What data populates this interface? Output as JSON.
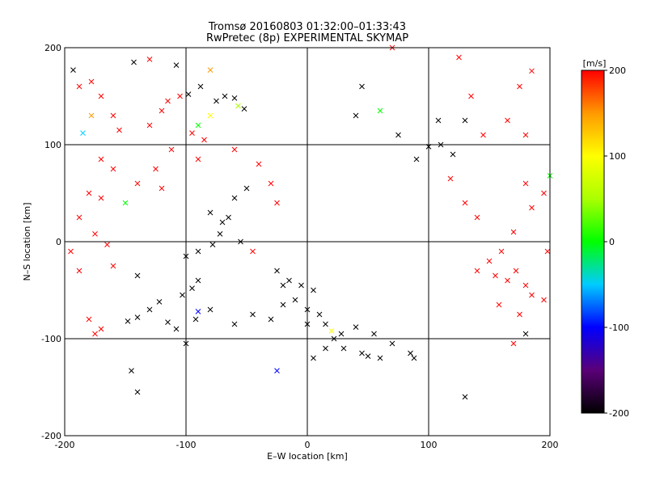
{
  "chart_data": {
    "type": "scatter",
    "title": "Tromsø 20160803 01:32:00–01:33:43",
    "subtitle": "RwPretec (8p) EXPERIMENTAL SKYMAP",
    "xlabel": "E–W location [km]",
    "ylabel": "N–S location [km]",
    "xlim": [
      -200,
      200
    ],
    "ylim": [
      -200,
      200
    ],
    "x_ticks": [
      -200,
      -100,
      0,
      100,
      200
    ],
    "y_ticks": [
      -200,
      -100,
      0,
      100,
      200
    ],
    "grid": true,
    "colorbar": {
      "label": "[m/s]",
      "min": -200,
      "max": 200,
      "ticks": [
        200,
        100,
        0,
        -100,
        -200
      ],
      "stops": [
        {
          "v": -200,
          "color": "#000000"
        },
        {
          "v": -150,
          "color": "#5a0078"
        },
        {
          "v": -100,
          "color": "#0000ff"
        },
        {
          "v": -50,
          "color": "#00ccff"
        },
        {
          "v": 0,
          "color": "#00ff00"
        },
        {
          "v": 50,
          "color": "#aaff00"
        },
        {
          "v": 100,
          "color": "#ffff00"
        },
        {
          "v": 150,
          "color": "#ff9900"
        },
        {
          "v": 200,
          "color": "#ff0000"
        }
      ]
    },
    "series": [
      {
        "marker": "x",
        "points": [
          {
            "x": -193,
            "y": 177,
            "v": -200
          },
          {
            "x": -188,
            "y": 160,
            "v": 200
          },
          {
            "x": -178,
            "y": 165,
            "v": 200
          },
          {
            "x": -143,
            "y": 185,
            "v": -200
          },
          {
            "x": -130,
            "y": 188,
            "v": 200
          },
          {
            "x": -108,
            "y": 182,
            "v": -200
          },
          {
            "x": -98,
            "y": 152,
            "v": -200
          },
          {
            "x": -88,
            "y": 160,
            "v": -200
          },
          {
            "x": -80,
            "y": 177,
            "v": 150
          },
          {
            "x": -75,
            "y": 145,
            "v": -200
          },
          {
            "x": -68,
            "y": 150,
            "v": -200
          },
          {
            "x": -60,
            "y": 148,
            "v": -200
          },
          {
            "x": -57,
            "y": 140,
            "v": 50
          },
          {
            "x": -52,
            "y": 137,
            "v": -200
          },
          {
            "x": -80,
            "y": 130,
            "v": 100
          },
          {
            "x": -90,
            "y": 120,
            "v": 0
          },
          {
            "x": -95,
            "y": 112,
            "v": 200
          },
          {
            "x": -85,
            "y": 105,
            "v": 200
          },
          {
            "x": -170,
            "y": 150,
            "v": 200
          },
          {
            "x": -160,
            "y": 130,
            "v": 200
          },
          {
            "x": -155,
            "y": 115,
            "v": 200
          },
          {
            "x": -185,
            "y": 112,
            "v": -50
          },
          {
            "x": -178,
            "y": 130,
            "v": 150
          },
          {
            "x": -130,
            "y": 120,
            "v": 200
          },
          {
            "x": -120,
            "y": 135,
            "v": 200
          },
          {
            "x": -115,
            "y": 145,
            "v": 200
          },
          {
            "x": -105,
            "y": 150,
            "v": 200
          },
          {
            "x": -140,
            "y": 60,
            "v": 200
          },
          {
            "x": -160,
            "y": 75,
            "v": 200
          },
          {
            "x": -150,
            "y": 40,
            "v": 0
          },
          {
            "x": -170,
            "y": 85,
            "v": 200
          },
          {
            "x": -188,
            "y": 25,
            "v": 200
          },
          {
            "x": -175,
            "y": 8,
            "v": 200
          },
          {
            "x": -195,
            "y": -10,
            "v": 200
          },
          {
            "x": -188,
            "y": -30,
            "v": 200
          },
          {
            "x": -140,
            "y": -35,
            "v": -200
          },
          {
            "x": -130,
            "y": -70,
            "v": -200
          },
          {
            "x": -140,
            "y": -78,
            "v": -200
          },
          {
            "x": -148,
            "y": -82,
            "v": -200
          },
          {
            "x": -122,
            "y": -62,
            "v": -200
          },
          {
            "x": -103,
            "y": -55,
            "v": -200
          },
          {
            "x": -95,
            "y": -48,
            "v": -200
          },
          {
            "x": -90,
            "y": -40,
            "v": -200
          },
          {
            "x": -115,
            "y": -83,
            "v": -200
          },
          {
            "x": -108,
            "y": -90,
            "v": -200
          },
          {
            "x": -92,
            "y": -80,
            "v": -200
          },
          {
            "x": -60,
            "y": -85,
            "v": -200
          },
          {
            "x": -80,
            "y": -70,
            "v": -200
          },
          {
            "x": -45,
            "y": -75,
            "v": -200
          },
          {
            "x": -30,
            "y": -80,
            "v": -200
          },
          {
            "x": -20,
            "y": -65,
            "v": -200
          },
          {
            "x": -10,
            "y": -60,
            "v": -200
          },
          {
            "x": -90,
            "y": -10,
            "v": -200
          },
          {
            "x": -78,
            "y": -3,
            "v": -200
          },
          {
            "x": -72,
            "y": 8,
            "v": -200
          },
          {
            "x": -70,
            "y": 20,
            "v": -200
          },
          {
            "x": -80,
            "y": 30,
            "v": -200
          },
          {
            "x": -65,
            "y": 25,
            "v": -200
          },
          {
            "x": -60,
            "y": 45,
            "v": -200
          },
          {
            "x": -50,
            "y": 55,
            "v": -200
          },
          {
            "x": -55,
            "y": 0,
            "v": -200
          },
          {
            "x": -45,
            "y": -10,
            "v": 200
          },
          {
            "x": -30,
            "y": 60,
            "v": 200
          },
          {
            "x": -25,
            "y": 40,
            "v": 200
          },
          {
            "x": -40,
            "y": 80,
            "v": 200
          },
          {
            "x": -25,
            "y": -30,
            "v": -200
          },
          {
            "x": -20,
            "y": -45,
            "v": -200
          },
          {
            "x": -15,
            "y": -40,
            "v": -200
          },
          {
            "x": -5,
            "y": -45,
            "v": -200
          },
          {
            "x": 5,
            "y": -50,
            "v": -200
          },
          {
            "x": 0,
            "y": -70,
            "v": -200
          },
          {
            "x": 10,
            "y": -75,
            "v": -200
          },
          {
            "x": 15,
            "y": -85,
            "v": -200
          },
          {
            "x": 20,
            "y": -92,
            "v": 100
          },
          {
            "x": 28,
            "y": -95,
            "v": -200
          },
          {
            "x": 22,
            "y": -100,
            "v": -200
          },
          {
            "x": 40,
            "y": -88,
            "v": -200
          },
          {
            "x": 55,
            "y": -95,
            "v": -200
          },
          {
            "x": 30,
            "y": -110,
            "v": -200
          },
          {
            "x": 15,
            "y": -110,
            "v": -200
          },
          {
            "x": 5,
            "y": -120,
            "v": -200
          },
          {
            "x": 45,
            "y": -115,
            "v": -200
          },
          {
            "x": 50,
            "y": -118,
            "v": -200
          },
          {
            "x": 60,
            "y": -120,
            "v": -200
          },
          {
            "x": 70,
            "y": -105,
            "v": -200
          },
          {
            "x": 85,
            "y": -115,
            "v": -200
          },
          {
            "x": 88,
            "y": -120,
            "v": -200
          },
          {
            "x": 100,
            "y": 98,
            "v": -200
          },
          {
            "x": 110,
            "y": 100,
            "v": -200
          },
          {
            "x": 120,
            "y": 90,
            "v": -200
          },
          {
            "x": 108,
            "y": 125,
            "v": -200
          },
          {
            "x": 130,
            "y": 125,
            "v": -200
          },
          {
            "x": 135,
            "y": 150,
            "v": 200
          },
          {
            "x": 125,
            "y": 190,
            "v": 200
          },
          {
            "x": 185,
            "y": 176,
            "v": 200
          },
          {
            "x": 175,
            "y": 160,
            "v": 200
          },
          {
            "x": 165,
            "y": 125,
            "v": 200
          },
          {
            "x": 180,
            "y": 110,
            "v": 200
          },
          {
            "x": 145,
            "y": 110,
            "v": 200
          },
          {
            "x": 118,
            "y": 65,
            "v": 200
          },
          {
            "x": 130,
            "y": 40,
            "v": 200
          },
          {
            "x": 140,
            "y": 25,
            "v": 200
          },
          {
            "x": 180,
            "y": 60,
            "v": 200
          },
          {
            "x": 195,
            "y": 50,
            "v": 200
          },
          {
            "x": 185,
            "y": 35,
            "v": 200
          },
          {
            "x": 200,
            "y": 68,
            "v": 0
          },
          {
            "x": 170,
            "y": 10,
            "v": 200
          },
          {
            "x": 160,
            "y": -10,
            "v": 200
          },
          {
            "x": 150,
            "y": -20,
            "v": 200
          },
          {
            "x": 140,
            "y": -30,
            "v": 200
          },
          {
            "x": 155,
            "y": -35,
            "v": 200
          },
          {
            "x": 165,
            "y": -40,
            "v": 200
          },
          {
            "x": 172,
            "y": -30,
            "v": 200
          },
          {
            "x": 180,
            "y": -45,
            "v": 200
          },
          {
            "x": 185,
            "y": -55,
            "v": 200
          },
          {
            "x": 195,
            "y": -60,
            "v": 200
          },
          {
            "x": 198,
            "y": -10,
            "v": 200
          },
          {
            "x": 158,
            "y": -65,
            "v": 200
          },
          {
            "x": 175,
            "y": -75,
            "v": 200
          },
          {
            "x": 170,
            "y": -105,
            "v": 200
          },
          {
            "x": 180,
            "y": -95,
            "v": -200
          },
          {
            "x": 130,
            "y": -160,
            "v": -200
          },
          {
            "x": -140,
            "y": -155,
            "v": -200
          },
          {
            "x": -145,
            "y": -133,
            "v": -200
          },
          {
            "x": -25,
            "y": -133,
            "v": -100
          },
          {
            "x": -90,
            "y": -72,
            "v": -100
          },
          {
            "x": 45,
            "y": 160,
            "v": -200
          },
          {
            "x": 40,
            "y": 130,
            "v": -200
          },
          {
            "x": 70,
            "y": 200,
            "v": 200
          },
          {
            "x": 60,
            "y": 135,
            "v": 0
          },
          {
            "x": 75,
            "y": 110,
            "v": -200
          },
          {
            "x": 90,
            "y": 85,
            "v": -200
          },
          {
            "x": -60,
            "y": 95,
            "v": 200
          },
          {
            "x": -90,
            "y": 85,
            "v": 200
          },
          {
            "x": -125,
            "y": 75,
            "v": 200
          },
          {
            "x": -112,
            "y": 95,
            "v": 200
          },
          {
            "x": -170,
            "y": 45,
            "v": 200
          },
          {
            "x": -180,
            "y": 50,
            "v": 200
          },
          {
            "x": -165,
            "y": -3,
            "v": 200
          },
          {
            "x": -120,
            "y": 55,
            "v": 200
          },
          {
            "x": -100,
            "y": -15,
            "v": -200
          },
          {
            "x": -180,
            "y": -80,
            "v": 200
          },
          {
            "x": -175,
            "y": -95,
            "v": 200
          },
          {
            "x": -170,
            "y": -90,
            "v": 200
          },
          {
            "x": -160,
            "y": -25,
            "v": 200
          },
          {
            "x": -100,
            "y": -105,
            "v": -200
          },
          {
            "x": 0,
            "y": -85,
            "v": -200
          }
        ]
      }
    ]
  }
}
